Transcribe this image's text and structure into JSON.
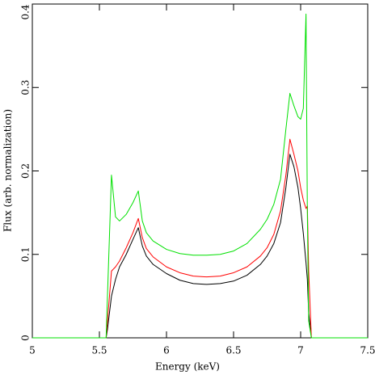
{
  "chart_data": {
    "type": "line",
    "xlabel": "Energy (keV)",
    "ylabel": "Flux (arb. normalization)",
    "x": [
      5,
      5.55,
      5.56,
      5.59,
      5.62,
      5.65,
      5.7,
      5.75,
      5.79,
      5.82,
      5.85,
      5.9,
      6.0,
      6.1,
      6.2,
      6.3,
      6.4,
      6.5,
      6.6,
      6.7,
      6.75,
      6.8,
      6.85,
      6.89,
      6.92,
      6.95,
      6.98,
      7.0,
      7.02,
      7.04,
      7.05,
      7.06,
      7.08,
      7.5
    ],
    "series": [
      {
        "color": "#000000",
        "values": [
          0,
          0,
          0.01,
          0.05,
          0.07,
          0.085,
          0.1,
          0.118,
          0.132,
          0.11,
          0.098,
          0.088,
          0.077,
          0.069,
          0.065,
          0.064,
          0.065,
          0.068,
          0.075,
          0.088,
          0.098,
          0.113,
          0.138,
          0.18,
          0.22,
          0.205,
          0.18,
          0.155,
          0.125,
          0.09,
          0.07,
          0.03,
          0,
          0
        ]
      },
      {
        "color": "#ff0000",
        "values": [
          0,
          0,
          0.02,
          0.08,
          0.085,
          0.092,
          0.108,
          0.126,
          0.143,
          0.12,
          0.107,
          0.097,
          0.085,
          0.078,
          0.074,
          0.073,
          0.074,
          0.078,
          0.085,
          0.098,
          0.108,
          0.124,
          0.152,
          0.195,
          0.238,
          0.22,
          0.2,
          0.18,
          0.165,
          0.155,
          0.158,
          0.08,
          0,
          0
        ]
      },
      {
        "color": "#00e000",
        "values": [
          0,
          0,
          0.05,
          0.195,
          0.145,
          0.14,
          0.148,
          0.162,
          0.176,
          0.14,
          0.126,
          0.116,
          0.106,
          0.101,
          0.099,
          0.099,
          0.1,
          0.104,
          0.113,
          0.13,
          0.142,
          0.16,
          0.19,
          0.25,
          0.293,
          0.278,
          0.265,
          0.262,
          0.275,
          0.388,
          0.15,
          0.02,
          0,
          0
        ]
      }
    ],
    "xlim": [
      5,
      7.5
    ],
    "xticks": [
      5,
      5.5,
      6,
      6.5,
      7,
      7.5
    ],
    "ylim": [
      0,
      0.4
    ],
    "yticks": [
      0,
      0.1,
      0.2,
      0.3,
      0.4
    ]
  }
}
